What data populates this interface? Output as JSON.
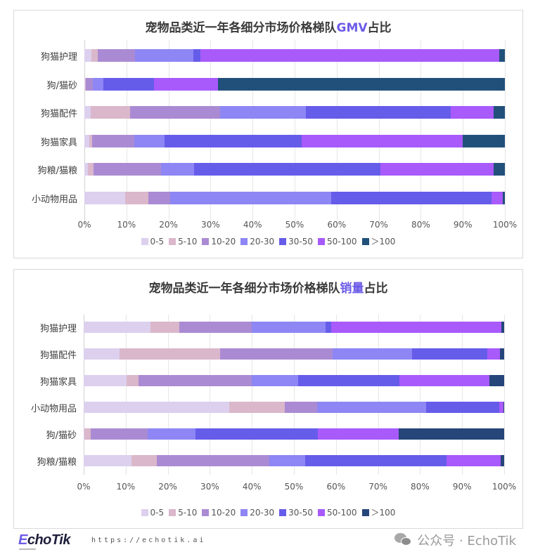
{
  "colors": {
    "0-5": "#DCD0EE",
    "5-10": "#DAB7CA",
    "10-20": "#AA8BD3",
    "20-30": "#8D86F4",
    "30-50": "#665CEA",
    "50-100": "#A85AFB",
    ">100": "#21517A",
    ">100_chart2": "#26467A",
    "title_highlight": "#6C5CE7"
  },
  "chart_data": [
    {
      "type": "bar",
      "orientation": "horizontal",
      "stacked": "percent",
      "title": "宠物品类近一年各细分市场价格梯队GMV占比",
      "title_prefix": "宠物品类近一年各细分市场价格梯队",
      "title_highlight": "GMV",
      "title_suffix": "占比",
      "xlabel": "",
      "ylabel": "",
      "xlim": [
        0,
        100
      ],
      "x_ticks": [
        "0%",
        "10%",
        "20%",
        "30%",
        "40%",
        "50%",
        "60%",
        "70%",
        "80%",
        "90%",
        "100%"
      ],
      "grid": true,
      "legend_position": "bottom",
      "categories": [
        "狗猫护理",
        "狗/猫砂",
        "狗猫配件",
        "狗猫家具",
        "狗粮/猫粮",
        "小动物用品"
      ],
      "series": [
        {
          "name": "0-5",
          "values": [
            1.7,
            0.2,
            1.5,
            1.2,
            0.9,
            9.7
          ]
        },
        {
          "name": "5-10",
          "values": [
            1.5,
            0.2,
            9.4,
            0.7,
            1.3,
            5.5
          ]
        },
        {
          "name": "10-20",
          "values": [
            8.9,
            1.6,
            21.3,
            10.0,
            16.1,
            5.2
          ]
        },
        {
          "name": "20-30",
          "values": [
            13.8,
            2.6,
            20.5,
            7.2,
            7.8,
            38.3
          ]
        },
        {
          "name": "30-50",
          "values": [
            1.7,
            11.9,
            34.5,
            32.6,
            44.3,
            38.2
          ]
        },
        {
          "name": "50-100",
          "values": [
            71.0,
            15.3,
            10.2,
            38.3,
            27.0,
            2.6
          ]
        },
        {
          "name": ">100",
          "values": [
            1.4,
            68.2,
            2.6,
            10.0,
            2.6,
            0.5
          ]
        }
      ]
    },
    {
      "type": "bar",
      "orientation": "horizontal",
      "stacked": "percent",
      "title": "宠物品类近一年各细分市场价格梯队销量占比",
      "title_prefix": "宠物品类近一年各细分市场价格梯队",
      "title_highlight": "销量",
      "title_suffix": "占比",
      "xlabel": "",
      "ylabel": "",
      "xlim": [
        0,
        100
      ],
      "x_ticks": [
        "0%",
        "10%",
        "20%",
        "30%",
        "40%",
        "50%",
        "60%",
        "70%",
        "80%",
        "90%",
        "100%"
      ],
      "grid": true,
      "legend_position": "bottom",
      "categories": [
        "狗猫护理",
        "狗猫配件",
        "狗猫家具",
        "小动物用品",
        "狗/猫砂",
        "狗粮/猫粮"
      ],
      "series": [
        {
          "name": "0-5",
          "values": [
            15.9,
            8.6,
            10.2,
            34.6,
            0.1,
            11.4
          ]
        },
        {
          "name": "5-10",
          "values": [
            6.9,
            23.9,
            2.9,
            13.3,
            1.6,
            6.0
          ]
        },
        {
          "name": "10-20",
          "values": [
            17.1,
            26.7,
            26.9,
            7.6,
            13.6,
            26.8
          ]
        },
        {
          "name": "20-30",
          "values": [
            17.7,
            18.9,
            11.0,
            25.9,
            11.3,
            8.5
          ]
        },
        {
          "name": "30-50",
          "values": [
            1.3,
            17.9,
            24.1,
            17.4,
            29.1,
            33.6
          ]
        },
        {
          "name": "50-100",
          "values": [
            40.4,
            3.0,
            21.4,
            1.0,
            19.3,
            12.8
          ]
        },
        {
          "name": ">100",
          "values": [
            0.7,
            1.0,
            3.5,
            0.2,
            25.0,
            0.9
          ]
        }
      ]
    }
  ],
  "legend": {
    "items": [
      "0-5",
      "5-10",
      "10-20",
      "20-30",
      "30-50",
      "50-100",
      "＞100"
    ]
  },
  "footer": {
    "logo_e": "E",
    "logo_rest": "choTik",
    "url": "https://echotik.ai",
    "wechat_label": "公众号 · EchoTik"
  }
}
